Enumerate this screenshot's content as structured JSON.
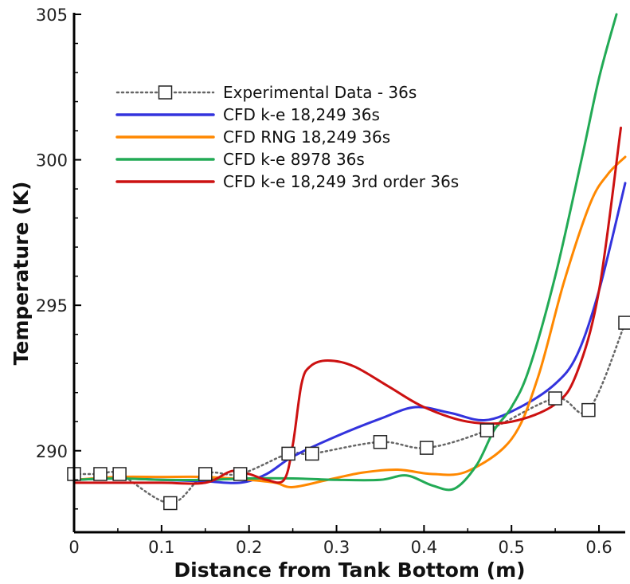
{
  "chart_data": {
    "type": "line",
    "xlabel": "Distance from Tank Bottom (m)",
    "ylabel": "Temperature (K)",
    "xlim": [
      0,
      0.63
    ],
    "ylim": [
      287.2,
      305
    ],
    "x_ticks": [
      0,
      0.1,
      0.2,
      0.3,
      0.4,
      0.5,
      0.6
    ],
    "x_tick_labels": [
      "0",
      "0.1",
      "0.2",
      "0.3",
      "0.4",
      "0.5",
      "0.6"
    ],
    "y_ticks": [
      290,
      295,
      300,
      305
    ],
    "y_tick_labels": [
      "290",
      "295",
      "300",
      "305"
    ],
    "grid": false,
    "legend_position": "upper-left",
    "series": [
      {
        "name": "Experimental Data - 36s",
        "color": "#666666",
        "style": "dotted-square-markers",
        "x": [
          0.0,
          0.03,
          0.052,
          0.11,
          0.15,
          0.19,
          0.245,
          0.272,
          0.35,
          0.403,
          0.472,
          0.55,
          0.588,
          0.63
        ],
        "y": [
          289.2,
          289.2,
          289.2,
          288.2,
          289.2,
          289.2,
          289.9,
          289.9,
          290.3,
          290.1,
          290.7,
          291.8,
          291.4,
          294.4
        ]
      },
      {
        "name": "CFD k-e 18,249 36s",
        "color": "#3333dd",
        "style": "solid",
        "x": [
          0.0,
          0.05,
          0.1,
          0.15,
          0.19,
          0.22,
          0.25,
          0.3,
          0.35,
          0.39,
          0.43,
          0.47,
          0.51,
          0.55,
          0.575,
          0.6,
          0.63
        ],
        "y": [
          289.0,
          289.05,
          289.0,
          288.95,
          288.9,
          289.2,
          289.8,
          290.5,
          291.1,
          291.5,
          291.3,
          291.05,
          291.5,
          292.3,
          293.3,
          295.5,
          299.2
        ]
      },
      {
        "name": "CFD RNG 18,249 36s",
        "color": "#ff8800",
        "style": "solid",
        "x": [
          0.0,
          0.05,
          0.1,
          0.15,
          0.2,
          0.23,
          0.25,
          0.29,
          0.33,
          0.37,
          0.41,
          0.45,
          0.5,
          0.53,
          0.56,
          0.59,
          0.61,
          0.63
        ],
        "y": [
          289.0,
          289.1,
          289.1,
          289.1,
          289.0,
          288.9,
          288.75,
          289.0,
          289.25,
          289.35,
          289.2,
          289.3,
          290.4,
          292.5,
          295.8,
          298.5,
          299.5,
          300.1
        ]
      },
      {
        "name": "CFD k-e 8978 36s",
        "color": "#22aa55",
        "style": "solid",
        "x": [
          0.0,
          0.05,
          0.1,
          0.15,
          0.2,
          0.25,
          0.3,
          0.35,
          0.38,
          0.41,
          0.435,
          0.46,
          0.48,
          0.5,
          0.52,
          0.55,
          0.58,
          0.6,
          0.62
        ],
        "y": [
          289.0,
          289.05,
          289.0,
          289.0,
          289.05,
          289.05,
          289.0,
          289.0,
          289.15,
          288.8,
          288.7,
          289.5,
          290.7,
          291.5,
          292.8,
          296.0,
          300.0,
          302.8,
          305.0
        ]
      },
      {
        "name": "CFD k-e 18,249 3rd order 36s",
        "color": "#cc1111",
        "style": "solid",
        "x": [
          0.0,
          0.05,
          0.1,
          0.15,
          0.18,
          0.2,
          0.22,
          0.24,
          0.25,
          0.26,
          0.27,
          0.29,
          0.32,
          0.36,
          0.4,
          0.45,
          0.5,
          0.55,
          0.575,
          0.6,
          0.625
        ],
        "y": [
          288.9,
          288.9,
          288.9,
          288.9,
          289.3,
          289.2,
          289.0,
          289.0,
          290.2,
          292.3,
          292.9,
          293.1,
          292.9,
          292.2,
          291.5,
          291.0,
          291.0,
          291.6,
          292.7,
          295.5,
          301.1
        ]
      }
    ]
  }
}
